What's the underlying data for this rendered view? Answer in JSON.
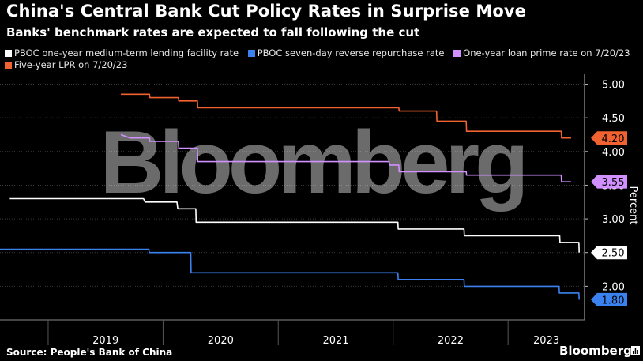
{
  "title": "China's Central Bank Cut Policy Rates in Surprise Move",
  "subtitle": "Banks' benchmark rates are expected to fall following the cut",
  "source": "Source: People's Bank of China",
  "brand": "Bloomberg",
  "watermark": "Bloomberg",
  "colors": {
    "background": "#000000",
    "mlf": "#ffffff",
    "repo": "#3a82f0",
    "lpr1": "#d190ff",
    "lpr5": "#f0622f",
    "grid": "#3a3a3a"
  },
  "chart_data": {
    "type": "line",
    "title": "China's Central Bank Cut Policy Rates in Surprise Move",
    "subtitle": "Banks' benchmark rates are expected to fall following the cut",
    "ylabel": "Percent",
    "ylim": [
      1.5,
      5.1
    ],
    "yticks": [
      2.0,
      2.5,
      3.0,
      3.5,
      4.0,
      4.5,
      5.0
    ],
    "xlim": [
      "2018-08-01",
      "2023-09-01"
    ],
    "xtick_labels": [
      "2019",
      "2020",
      "2021",
      "2022",
      "2023"
    ],
    "legend_position": "top",
    "grid": true,
    "series": [
      {
        "name": "PBOC one-year medium-term lending facility rate",
        "color": "#ffffff",
        "end_label": "2.50",
        "points": [
          [
            "2018-09-01",
            3.3
          ],
          [
            "2019-10-31",
            3.3
          ],
          [
            "2019-11-05",
            3.25
          ],
          [
            "2020-02-14",
            3.25
          ],
          [
            "2020-02-17",
            3.15
          ],
          [
            "2020-04-14",
            3.15
          ],
          [
            "2020-04-15",
            2.95
          ],
          [
            "2022-01-16",
            2.95
          ],
          [
            "2022-01-17",
            2.85
          ],
          [
            "2022-08-14",
            2.85
          ],
          [
            "2022-08-15",
            2.75
          ],
          [
            "2023-06-14",
            2.75
          ],
          [
            "2023-06-15",
            2.65
          ],
          [
            "2023-08-14",
            2.65
          ],
          [
            "2023-08-15",
            2.5
          ]
        ]
      },
      {
        "name": "PBOC seven-day reverse repurchase rate",
        "color": "#3a82f0",
        "end_label": "1.80",
        "points": [
          [
            "2018-08-01",
            2.55
          ],
          [
            "2019-11-17",
            2.55
          ],
          [
            "2019-11-18",
            2.5
          ],
          [
            "2020-03-29",
            2.5
          ],
          [
            "2020-03-30",
            2.2
          ],
          [
            "2022-01-16",
            2.2
          ],
          [
            "2022-01-17",
            2.1
          ],
          [
            "2022-08-14",
            2.1
          ],
          [
            "2022-08-15",
            2.0
          ],
          [
            "2023-06-12",
            2.0
          ],
          [
            "2023-06-13",
            1.9
          ],
          [
            "2023-08-14",
            1.9
          ],
          [
            "2023-08-15",
            1.8
          ]
        ]
      },
      {
        "name": "One-year loan prime rate on 7/20/23",
        "color": "#d190ff",
        "end_label": "3.55",
        "points": [
          [
            "2019-08-20",
            4.25
          ],
          [
            "2019-09-19",
            4.2
          ],
          [
            "2019-11-19",
            4.2
          ],
          [
            "2019-11-20",
            4.15
          ],
          [
            "2020-02-19",
            4.15
          ],
          [
            "2020-02-20",
            4.05
          ],
          [
            "2020-04-19",
            4.05
          ],
          [
            "2020-04-20",
            3.85
          ],
          [
            "2021-12-19",
            3.85
          ],
          [
            "2021-12-20",
            3.8
          ],
          [
            "2022-01-19",
            3.8
          ],
          [
            "2022-01-20",
            3.7
          ],
          [
            "2022-08-21",
            3.7
          ],
          [
            "2022-08-22",
            3.65
          ],
          [
            "2023-06-19",
            3.65
          ],
          [
            "2023-06-20",
            3.55
          ],
          [
            "2023-07-20",
            3.55
          ]
        ]
      },
      {
        "name": "Five-year LPR on 7/20/23",
        "color": "#f0622f",
        "end_label": "4.20",
        "points": [
          [
            "2019-08-20",
            4.85
          ],
          [
            "2019-11-19",
            4.85
          ],
          [
            "2019-11-20",
            4.8
          ],
          [
            "2020-02-19",
            4.8
          ],
          [
            "2020-02-20",
            4.75
          ],
          [
            "2020-04-19",
            4.75
          ],
          [
            "2020-04-20",
            4.65
          ],
          [
            "2022-01-19",
            4.65
          ],
          [
            "2022-01-20",
            4.6
          ],
          [
            "2022-05-19",
            4.6
          ],
          [
            "2022-05-20",
            4.45
          ],
          [
            "2022-08-21",
            4.45
          ],
          [
            "2022-08-22",
            4.3
          ],
          [
            "2023-06-19",
            4.3
          ],
          [
            "2023-06-20",
            4.2
          ],
          [
            "2023-07-20",
            4.2
          ]
        ]
      }
    ]
  }
}
